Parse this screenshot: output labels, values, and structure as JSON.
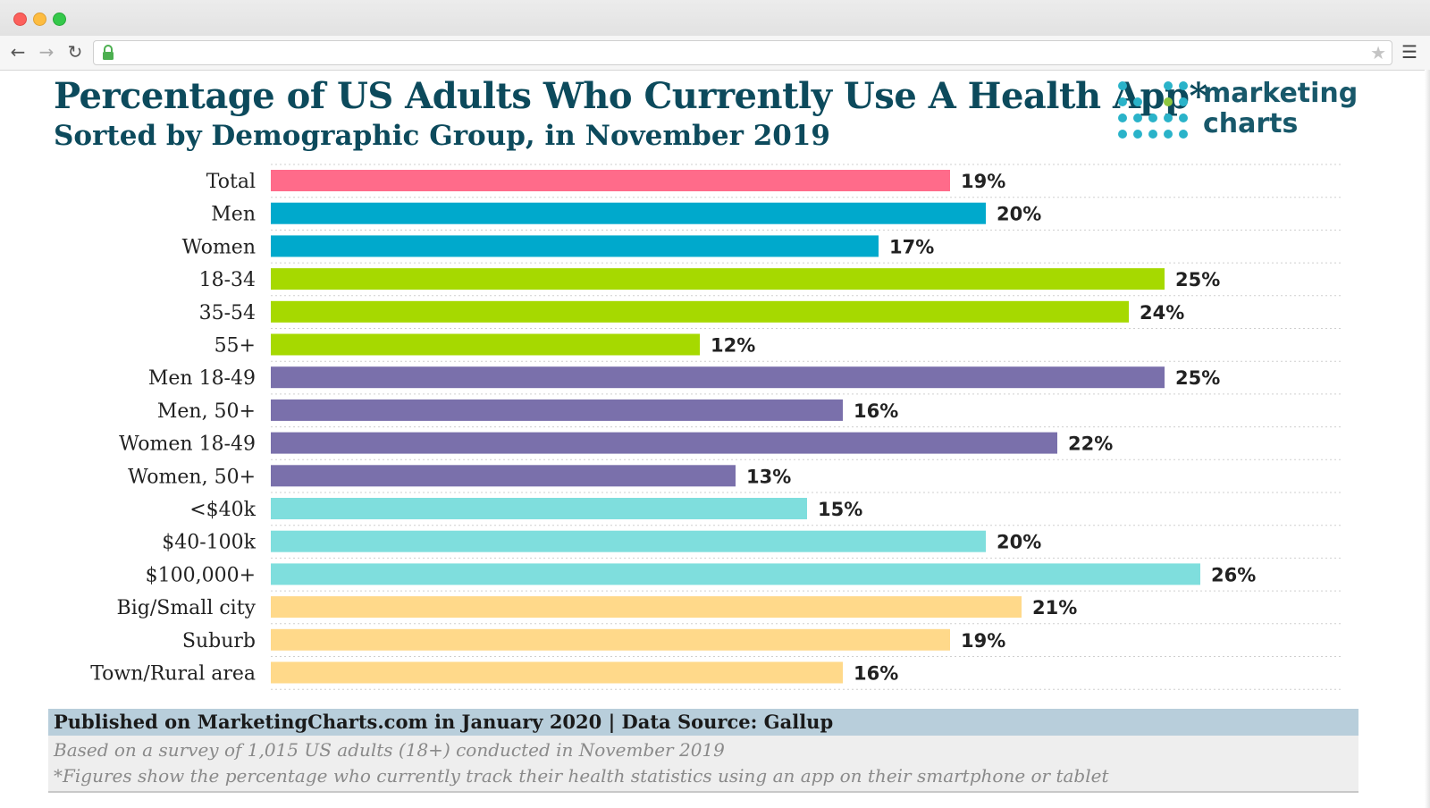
{
  "browser": {
    "back_icon": "back-arrow-icon",
    "forward_icon": "forward-arrow-icon",
    "reload_icon": "reload-icon",
    "lock_icon": "lock-icon",
    "star_icon": "star-icon",
    "menu_icon": "hamburger-menu-icon",
    "url": ""
  },
  "header": {
    "title": "Percentage of US Adults Who Currently Use A Health App*",
    "subtitle": "Sorted by Demographic Group, in November 2019",
    "logo_text": "marketing\ncharts",
    "logo_dot_color": "#2ab3c9",
    "logo_accent_color": "#8dc63f"
  },
  "chart_data": {
    "type": "bar",
    "orientation": "horizontal",
    "title": "Percentage of US Adults Who Currently Use A Health App*",
    "subtitle": "Sorted by Demographic Group, in November 2019",
    "xlabel": "",
    "ylabel": "",
    "xlim": [
      0,
      30
    ],
    "value_suffix": "%",
    "grid": true,
    "categories": [
      "Total",
      "Men",
      "Women",
      "18-34",
      "35-54",
      "55+",
      "Men 18-49",
      "Men, 50+",
      "Women 18-49",
      "Women, 50+",
      "<$40k",
      "$40-100k",
      "$100,000+",
      "Big/Small city",
      "Suburb",
      "Town/Rural area"
    ],
    "values": [
      19,
      20,
      17,
      25,
      24,
      12,
      25,
      16,
      22,
      13,
      15,
      20,
      26,
      21,
      19,
      16
    ],
    "value_labels": [
      "19%",
      "20%",
      "17%",
      "25%",
      "24%",
      "12%",
      "25%",
      "16%",
      "22%",
      "13%",
      "15%",
      "20%",
      "26%",
      "21%",
      "19%",
      "16%"
    ],
    "colors": [
      "#ff6b8a",
      "#00a9cc",
      "#00a9cc",
      "#a6d900",
      "#a6d900",
      "#a6d900",
      "#7a70ab",
      "#7a70ab",
      "#7a70ab",
      "#7a70ab",
      "#7fdedd",
      "#7fdedd",
      "#7fdedd",
      "#ffd98a",
      "#ffd98a",
      "#ffd98a"
    ]
  },
  "footer": {
    "published": "Published on MarketingCharts.com in January 2020 | Data Source: Gallup",
    "note1": "Based on a survey of 1,015 US adults (18+) conducted in November 2019",
    "note2": "*Figures show the percentage who currently track their health statistics using an app on their smartphone or tablet"
  }
}
